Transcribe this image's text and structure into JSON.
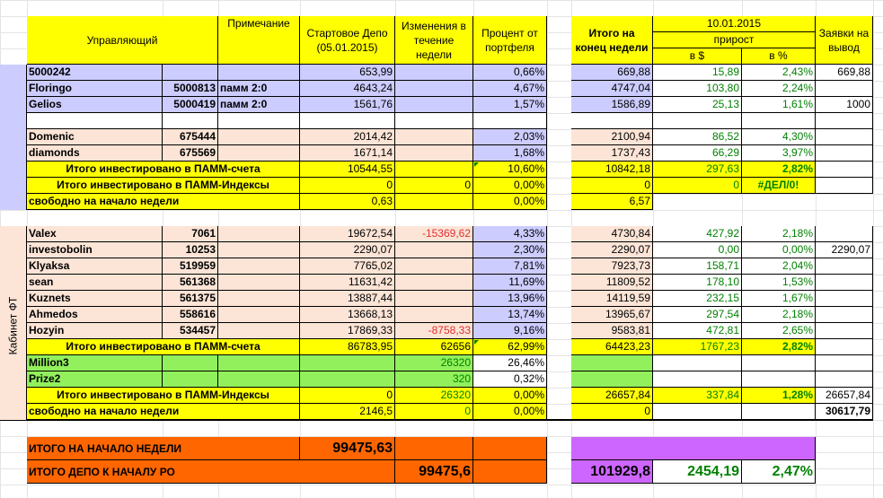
{
  "header": {
    "manager": "Управляющий",
    "note": "Примечание",
    "start_depo": "Стартовое Депо (05.01.2015)",
    "changes": "Изменения в течение недели",
    "percent": "Процент от портфеля",
    "total_end": "Итого на конец недели",
    "date": "10.01.2015",
    "growth": "прирост",
    "in_usd": "в $",
    "in_pct": "в %",
    "withdraw": "Заявки на вывод"
  },
  "cabinet_label": "Кабинет ФТ",
  "section1": [
    {
      "name": "5000242",
      "id": "",
      "note": "",
      "start": "653,99",
      "change": "",
      "pct": "0,66%",
      "end": "669,88",
      "gusd": "15,89",
      "gpct": "2,43%",
      "wd": "669,88"
    },
    {
      "name": "Floringo",
      "id": "5000813",
      "note": "памм 2:0",
      "start": "4643,24",
      "change": "",
      "pct": "4,67%",
      "end": "4747,04",
      "gusd": "103,80",
      "gpct": "2,24%",
      "wd": ""
    },
    {
      "name": "Gelios",
      "id": "5000419",
      "note": "памм 2:0",
      "start": "1561,76",
      "change": "",
      "pct": "1,57%",
      "end": "1586,89",
      "gusd": "25,13",
      "gpct": "1,61%",
      "wd": "1000"
    },
    {
      "name": "Domenic",
      "id": "675444",
      "note": "",
      "start": "2014,42",
      "change": "",
      "pct": "2,03%",
      "end": "2100,94",
      "gusd": "86,52",
      "gpct": "4,30%",
      "wd": ""
    },
    {
      "name": "diamonds",
      "id": "675569",
      "note": "",
      "start": "1671,14",
      "change": "",
      "pct": "1,68%",
      "end": "1737,43",
      "gusd": "66,29",
      "gpct": "3,97%",
      "wd": ""
    }
  ],
  "s1_total_pamm": {
    "label": "Итого инвестировано в ПАММ-счета",
    "start": "10544,55",
    "pct": "10,60%",
    "end": "10842,18",
    "gusd": "297,63",
    "gpct": "2,82%"
  },
  "s1_total_index": {
    "label": "Итого инвестировано в ПАММ-Индексы",
    "start": "0",
    "change": "0",
    "pct": "0,00%",
    "end": "0",
    "gusd": "0",
    "gpct": "#ДЕЛ/0!"
  },
  "s1_free": {
    "label": "свободно на начало недели",
    "start": "0,63",
    "pct": "0,00%",
    "end": "6,57"
  },
  "section2": [
    {
      "name": "Valex",
      "id": "7061",
      "start": "19672,54",
      "change": "-15369,62",
      "pct": "4,33%",
      "end": "4730,84",
      "gusd": "427,92",
      "gpct": "2,18%",
      "wd": ""
    },
    {
      "name": "investobolin",
      "id": "10253",
      "start": "2290,07",
      "change": "",
      "pct": "2,30%",
      "end": "2290,07",
      "gusd": "0,00",
      "gpct": "0,00%",
      "wd": "2290,07"
    },
    {
      "name": "Klyaksa",
      "id": "519959",
      "start": "7765,02",
      "change": "",
      "pct": "7,81%",
      "end": "7923,73",
      "gusd": "158,71",
      "gpct": "2,04%",
      "wd": ""
    },
    {
      "name": "sean",
      "id": "561368",
      "start": "11631,42",
      "change": "",
      "pct": "11,69%",
      "end": "11809,52",
      "gusd": "178,10",
      "gpct": "1,53%",
      "wd": ""
    },
    {
      "name": "Kuznets",
      "id": "561375",
      "start": "13887,44",
      "change": "",
      "pct": "13,96%",
      "end": "14119,59",
      "gusd": "232,15",
      "gpct": "1,67%",
      "wd": ""
    },
    {
      "name": "Ahmedos",
      "id": "558616",
      "start": "13668,13",
      "change": "",
      "pct": "13,74%",
      "end": "13965,67",
      "gusd": "297,54",
      "gpct": "2,18%",
      "wd": ""
    },
    {
      "name": "Hozyin",
      "id": "534457",
      "start": "17869,33",
      "change": "-8758,33",
      "pct": "9,16%",
      "end": "9583,81",
      "gusd": "472,81",
      "gpct": "2,65%",
      "wd": ""
    }
  ],
  "s2_total_pamm": {
    "label": "Итого инвестировано в ПАММ-счета",
    "start": "86783,95",
    "change": "62656",
    "pct": "62,99%",
    "end": "64423,23",
    "gusd": "1767,23",
    "gpct": "2,82%"
  },
  "indices": [
    {
      "name": "Million3",
      "change": "26320",
      "pct": "26,46%"
    },
    {
      "name": "Prize2",
      "change": "320",
      "pct": "0,32%"
    }
  ],
  "s2_total_index": {
    "label": "Итого инвестировано в ПАММ-Индексы",
    "start": "0",
    "change": "26320",
    "pct": "0,00%",
    "end": "26657,84",
    "gusd": "337,84",
    "gpct": "1,28%",
    "wd": "26657,84"
  },
  "s2_free": {
    "label": "свободно на начало недели",
    "start": "2146,5",
    "change": "0",
    "pct": "0,00%",
    "end": "0",
    "wd": "30617,79"
  },
  "summary": {
    "week_start_label": "ИТОГО НА НАЧАЛО НЕДЕЛИ",
    "week_start_value": "99475,63",
    "depo_label": "ИТОГО ДЕПО К НАЧАЛУ РО",
    "depo_value": "99475,6",
    "total": "101929,8",
    "gusd": "2454,19",
    "gpct": "2,47%"
  },
  "colors": {
    "yellow": "#ffff00",
    "lavender": "#ccccff",
    "peach": "#fce4d6",
    "green": "#92f05c",
    "orange": "#ff6600",
    "purple": "#cc66ff"
  }
}
